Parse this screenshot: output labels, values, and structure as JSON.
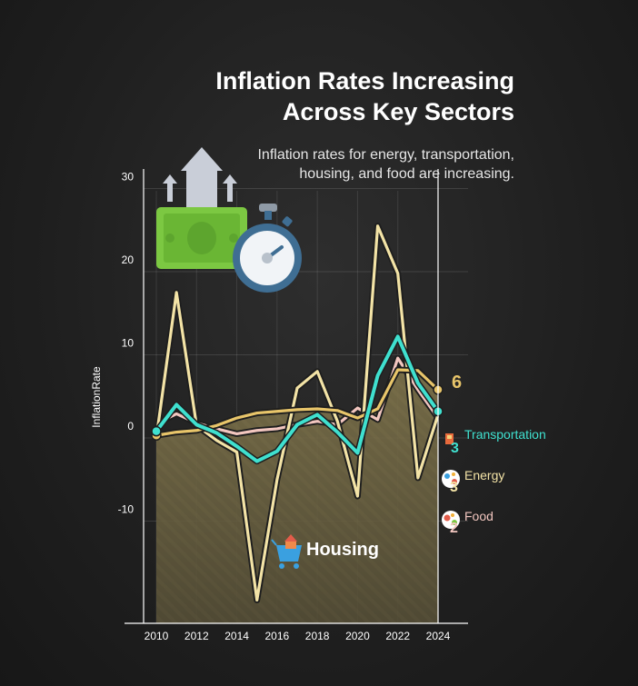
{
  "header": {
    "title_line1": "Inflation Rates Increasing",
    "title_line2": "Across Key Sectors",
    "subtitle_line1": "Inflation rates for energy, transportation,",
    "subtitle_line2": "housing, and food are increasing."
  },
  "chart_data": {
    "type": "line",
    "title": "Inflation Rates Increasing Across Key Sectors",
    "subtitle": "Inflation rates for energy, transportation, housing, and food are increasing.",
    "ylabel": "InflationRate",
    "xlabel": "",
    "x": [
      2010,
      2011,
      2012,
      2013,
      2014,
      2015,
      2016,
      2017,
      2018,
      2019,
      2020,
      2021,
      2022,
      2023,
      2024
    ],
    "xticks": [
      "2010",
      "2012",
      "2014",
      "2016",
      "2018",
      "2020",
      "2022",
      "2024"
    ],
    "yticks": [
      "30",
      "20",
      "10",
      "0",
      "-10"
    ],
    "ylim": [
      -22,
      33
    ],
    "grid": true,
    "series": [
      {
        "name": "Housing",
        "color": "#e8c56a",
        "area": true,
        "values": [
          0.3,
          0.7,
          0.9,
          1.5,
          2.4,
          3.0,
          3.2,
          3.4,
          3.5,
          3.3,
          2.4,
          3.5,
          8.2,
          8.1,
          5.8
        ],
        "end_label": "6",
        "label": "Housing",
        "icon": "shopping-cart-house-icon"
      },
      {
        "name": "Transportation",
        "color": "#3fe0cf",
        "values": [
          0.8,
          4.0,
          1.6,
          0.6,
          -1.0,
          -2.8,
          -1.6,
          1.6,
          2.8,
          0.7,
          -1.8,
          7.5,
          12.2,
          6.6,
          3.2
        ],
        "end_label": "3",
        "label": "Transportation",
        "icon": "fuel-pump-icon"
      },
      {
        "name": "Energy",
        "color": "#f3e3a6",
        "values": [
          0.0,
          17.5,
          1.5,
          -0.3,
          -1.7,
          -19.5,
          -5.0,
          6.0,
          8.0,
          2.0,
          -7.0,
          25.5,
          19.8,
          -4.8,
          2.8
        ],
        "end_label": "3",
        "label": "Energy",
        "icon": "energy-icon"
      },
      {
        "name": "Food",
        "color": "#f2c6bf",
        "values": [
          1.7,
          2.9,
          1.8,
          1.1,
          0.5,
          0.9,
          1.1,
          1.6,
          2.0,
          1.6,
          3.6,
          2.2,
          9.6,
          5.8,
          2.4
        ],
        "end_label": "2",
        "label": "Food",
        "icon": "food-icon"
      }
    ],
    "decoration_icons": [
      "money-growth-icon",
      "stopwatch-icon"
    ]
  }
}
